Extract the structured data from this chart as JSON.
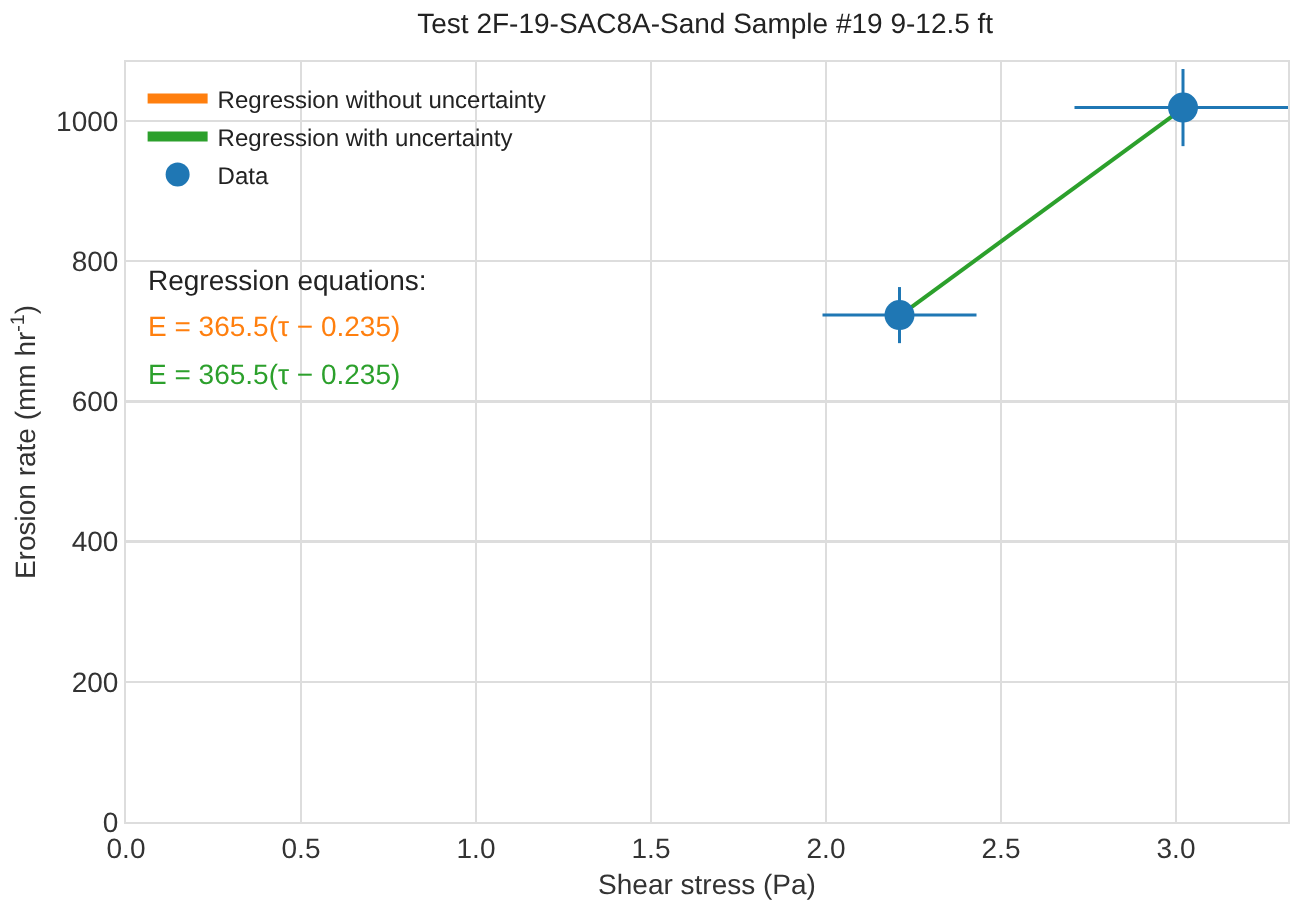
{
  "chart_data": {
    "type": "scatter",
    "title": "Test 2F-19-SAC8A-Sand Sample #19 9-12.5 ft",
    "xlabel": "Shear stress (Pa)",
    "ylabel": "Erosion rate (mm hr$^{-1}$)",
    "x": [
      2.21,
      3.02
    ],
    "series": [
      {
        "name": "Regression without uncertainty",
        "type": "line",
        "color": "#ff7f0e",
        "values": [
          null,
          null
        ]
      },
      {
        "name": "Regression with uncertainty",
        "type": "line",
        "color": "#2ca02c",
        "x": [
          2.21,
          3.02
        ],
        "values": [
          722,
          1018
        ]
      },
      {
        "name": "Data",
        "color": "#1f77b4",
        "values": [
          723,
          1019
        ],
        "errors": [
          40,
          55
        ],
        "xerrors": [
          0.22,
          0.31
        ],
        "marker": "circle"
      }
    ],
    "annotations": [
      "Regression equations:",
      "E = 365.5(τ − 0.235)",
      "E = 365.5(τ − 0.235)"
    ],
    "xlim": [
      0,
      3.32
    ],
    "ylim": [
      0,
      1084
    ],
    "xticks": [
      {
        "value": 0,
        "label": "0.0"
      },
      {
        "value": 0.5,
        "label": "0.5"
      },
      {
        "value": 1,
        "label": "1.0"
      },
      {
        "value": 1.5,
        "label": "1.5"
      },
      {
        "value": 2,
        "label": "2.0"
      },
      {
        "value": 2.5,
        "label": "2.5"
      },
      {
        "value": 3,
        "label": "3.0"
      }
    ],
    "yticks": [
      0,
      200,
      400,
      600,
      800,
      1000
    ],
    "grid": true,
    "legend": "top left"
  }
}
